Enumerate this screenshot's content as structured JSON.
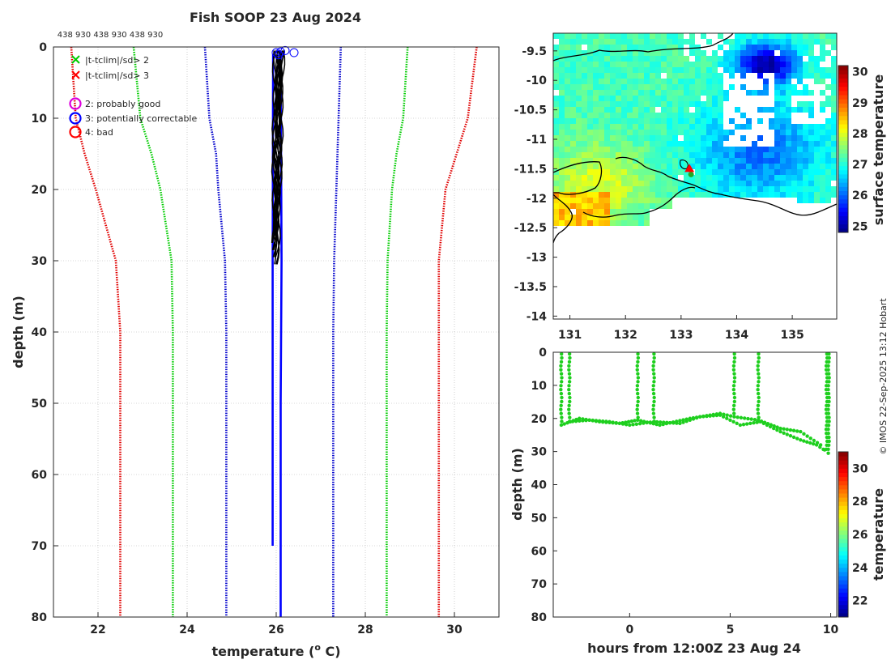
{
  "copyright": "© IMOS 22-Sep-2025 13:12 Hobart",
  "colors": {
    "gray_line": "#000000",
    "climatology_sd1": "#0000cc",
    "climatology_sd2": "#00cc00",
    "climatology_sd3": "#e00000",
    "profiles": "#000000",
    "ship_track": "#1ecf1e",
    "legend_flag2": "#dd00dd",
    "legend_flag3": "#0000ff",
    "legend_flag4": "#ff0000"
  },
  "chart_data": [
    {
      "type": "line",
      "title": "Fish SOOP 23 Aug 2024",
      "xlabel": "temperature (",
      "xlabel_sup": "o",
      "xlabel_end": " C)",
      "ylabel": "depth (m)",
      "xlim": [
        21,
        31
      ],
      "ylim": [
        0,
        80
      ],
      "y_reversed": true,
      "xticks": [
        22,
        24,
        26,
        28,
        30
      ],
      "yticks": [
        0,
        10,
        20,
        30,
        40,
        50,
        60,
        70,
        80
      ],
      "top_labels": "438 930 438 930 438 930",
      "legend": [
        {
          "symbol": "x",
          "color": "#00cc00",
          "label": "|t-tclim|/sd> 2"
        },
        {
          "symbol": "x",
          "color": "#ff0000",
          "label": "|t-tclim|/sd> 3"
        },
        {
          "symbol": "o",
          "color": "#dd00dd",
          "label": "2: probably good"
        },
        {
          "symbol": "o",
          "color": "#0000ff",
          "label": "3: potentially correctable"
        },
        {
          "symbol": "o",
          "color": "#ff0000",
          "label": "4: bad"
        }
      ],
      "climatology": [
        {
          "name": "clim-3sd-low",
          "color": "#e00000",
          "points": [
            [
              21.4,
              0
            ],
            [
              21.5,
              10
            ],
            [
              21.7,
              15
            ],
            [
              21.95,
              20
            ],
            [
              22.4,
              30
            ],
            [
              22.5,
              40
            ],
            [
              22.5,
              80
            ]
          ]
        },
        {
          "name": "clim-2sd-low",
          "color": "#00cc00",
          "points": [
            [
              22.8,
              0
            ],
            [
              22.95,
              10
            ],
            [
              23.2,
              15
            ],
            [
              23.4,
              20
            ],
            [
              23.65,
              30
            ],
            [
              23.68,
              40
            ],
            [
              23.68,
              80
            ]
          ]
        },
        {
          "name": "clim-1sd-low",
          "color": "#0000cc",
          "points": [
            [
              24.4,
              0
            ],
            [
              24.5,
              10
            ],
            [
              24.65,
              15
            ],
            [
              24.7,
              20
            ],
            [
              24.85,
              30
            ],
            [
              24.88,
              40
            ],
            [
              24.88,
              80
            ]
          ]
        },
        {
          "name": "clim-1sd-high",
          "color": "#0000cc",
          "points": [
            [
              27.45,
              0
            ],
            [
              27.4,
              10
            ],
            [
              27.35,
              20
            ],
            [
              27.3,
              30
            ],
            [
              27.28,
              40
            ],
            [
              27.28,
              80
            ]
          ]
        },
        {
          "name": "clim-2sd-high",
          "color": "#00cc00",
          "points": [
            [
              28.95,
              0
            ],
            [
              28.85,
              10
            ],
            [
              28.7,
              15
            ],
            [
              28.6,
              20
            ],
            [
              28.5,
              30
            ],
            [
              28.48,
              40
            ],
            [
              28.48,
              80
            ]
          ]
        },
        {
          "name": "clim-3sd-high",
          "color": "#e00000",
          "points": [
            [
              30.5,
              0
            ],
            [
              30.3,
              10
            ],
            [
              30.05,
              15
            ],
            [
              29.8,
              20
            ],
            [
              29.65,
              30
            ],
            [
              29.65,
              40
            ],
            [
              29.65,
              80
            ]
          ]
        }
      ],
      "blue_profiles": [
        {
          "points": [
            [
              26.1,
              1
            ],
            [
              26.12,
              30
            ],
            [
              26.1,
              50
            ],
            [
              26.1,
              80
            ]
          ]
        },
        {
          "points": [
            [
              25.93,
              1
            ],
            [
              25.92,
              30
            ],
            [
              25.92,
              70
            ]
          ]
        }
      ],
      "black_profiles_temp_range": [
        25.95,
        26.35
      ],
      "black_profiles_depth_range": [
        0,
        31
      ],
      "flag3_markers": [
        [
          26.0,
          0.8
        ],
        [
          26.1,
          0.7
        ],
        [
          26.2,
          0.5
        ],
        [
          26.4,
          0.8
        ],
        [
          26.05,
          1.1
        ]
      ]
    },
    {
      "type": "heatmap",
      "name": "surface-temperature-map",
      "xlim": [
        130.7,
        135.8
      ],
      "ylim": [
        -14.05,
        -9.2
      ],
      "xticks": [
        131,
        132,
        133,
        134,
        135
      ],
      "yticks": [
        -9.5,
        -10,
        -10.5,
        -11,
        -11.5,
        -12,
        -12.5,
        -13,
        -13.5,
        -14
      ],
      "colorbar_label": "surface temperature",
      "colorbar_range": [
        24.8,
        30.2
      ],
      "colorbar_ticks": [
        25,
        26,
        27,
        28,
        29,
        30
      ],
      "marker_position": [
        133.15,
        -11.5
      ]
    },
    {
      "type": "scatter",
      "name": "depth-time-section",
      "xlabel": "hours from 12:00Z 23 Aug 24",
      "ylabel": "depth (m)",
      "xlim": [
        -3.8,
        10.3
      ],
      "ylim": [
        0,
        80
      ],
      "y_reversed": true,
      "xticks": [
        0,
        5,
        10
      ],
      "yticks": [
        0,
        10,
        20,
        30,
        40,
        50,
        60,
        70,
        80
      ],
      "colorbar_label": "temperature",
      "colorbar_range": [
        21,
        31
      ],
      "colorbar_ticks": [
        22,
        24,
        26,
        28,
        30
      ],
      "casts": [
        {
          "x": -3.4,
          "max_depth": 22
        },
        {
          "x": -3.0,
          "max_depth": 21
        },
        {
          "x": 0.4,
          "max_depth": 20
        },
        {
          "x": 1.2,
          "max_depth": 21
        },
        {
          "x": 5.2,
          "max_depth": 19
        },
        {
          "x": 6.4,
          "max_depth": 21
        },
        {
          "x": 9.8,
          "max_depth": 30
        },
        {
          "x": 9.9,
          "max_depth": 31
        }
      ],
      "track_a": [
        [
          -3.4,
          22
        ],
        [
          -2.5,
          20
        ],
        [
          -1.5,
          21
        ],
        [
          -0.5,
          21.5
        ],
        [
          0.4,
          20.5
        ],
        [
          1.5,
          22
        ],
        [
          3,
          20
        ],
        [
          4.5,
          18.5
        ],
        [
          5.2,
          19.5
        ],
        [
          6.4,
          20.5
        ],
        [
          7.5,
          23
        ],
        [
          8.5,
          24
        ],
        [
          9.5,
          28
        ],
        [
          9.9,
          31
        ]
      ],
      "track_b": [
        [
          -3.0,
          21
        ],
        [
          -2,
          20.5
        ],
        [
          -1,
          21
        ],
        [
          0,
          22
        ],
        [
          1.2,
          21
        ],
        [
          2.5,
          21.5
        ],
        [
          3.5,
          19.5
        ],
        [
          4.5,
          19
        ],
        [
          5.5,
          22
        ],
        [
          6.5,
          21
        ],
        [
          7.5,
          24
        ],
        [
          8.5,
          26.5
        ],
        [
          9.3,
          28
        ],
        [
          9.8,
          30
        ]
      ]
    }
  ]
}
